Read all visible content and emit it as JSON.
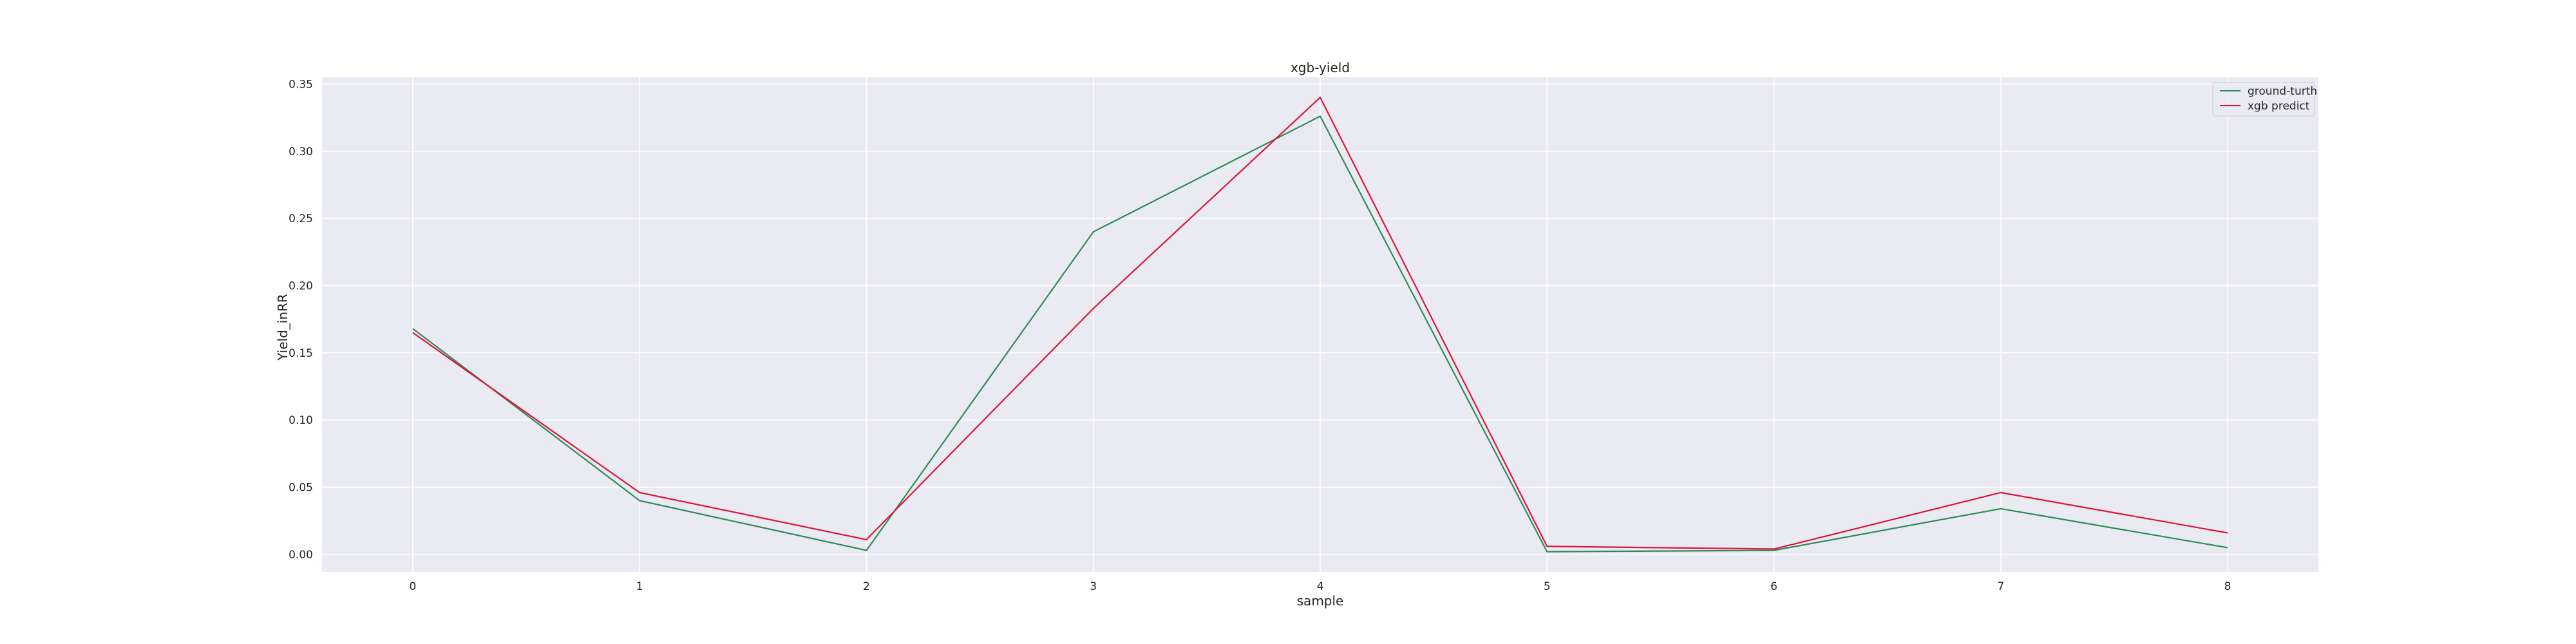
{
  "chart_data": {
    "type": "line",
    "title": "xgb-yield",
    "xlabel": "sample",
    "ylabel": "Yield_inRR",
    "x": [
      0,
      1,
      2,
      3,
      4,
      5,
      6,
      7,
      8
    ],
    "xticks": [
      "0",
      "1",
      "2",
      "3",
      "4",
      "5",
      "6",
      "7",
      "8"
    ],
    "yticks": [
      "0.00",
      "0.05",
      "0.10",
      "0.15",
      "0.20",
      "0.25",
      "0.30",
      "0.35"
    ],
    "xlim": [
      -0.4,
      8.4
    ],
    "ylim": [
      -0.013,
      0.355
    ],
    "grid": true,
    "legend_position": "top-right",
    "background_color": "#eaeaf2",
    "grid_color": "#ffffff",
    "series": [
      {
        "name": "ground-turth",
        "color": "#2e8b57",
        "values": [
          0.168,
          0.04,
          0.003,
          0.24,
          0.326,
          0.002,
          0.003,
          0.034,
          0.005
        ]
      },
      {
        "name": "xgb predict",
        "color": "#dc143c",
        "values": [
          0.165,
          0.046,
          0.011,
          0.183,
          0.34,
          0.006,
          0.004,
          0.046,
          0.016
        ]
      }
    ]
  }
}
